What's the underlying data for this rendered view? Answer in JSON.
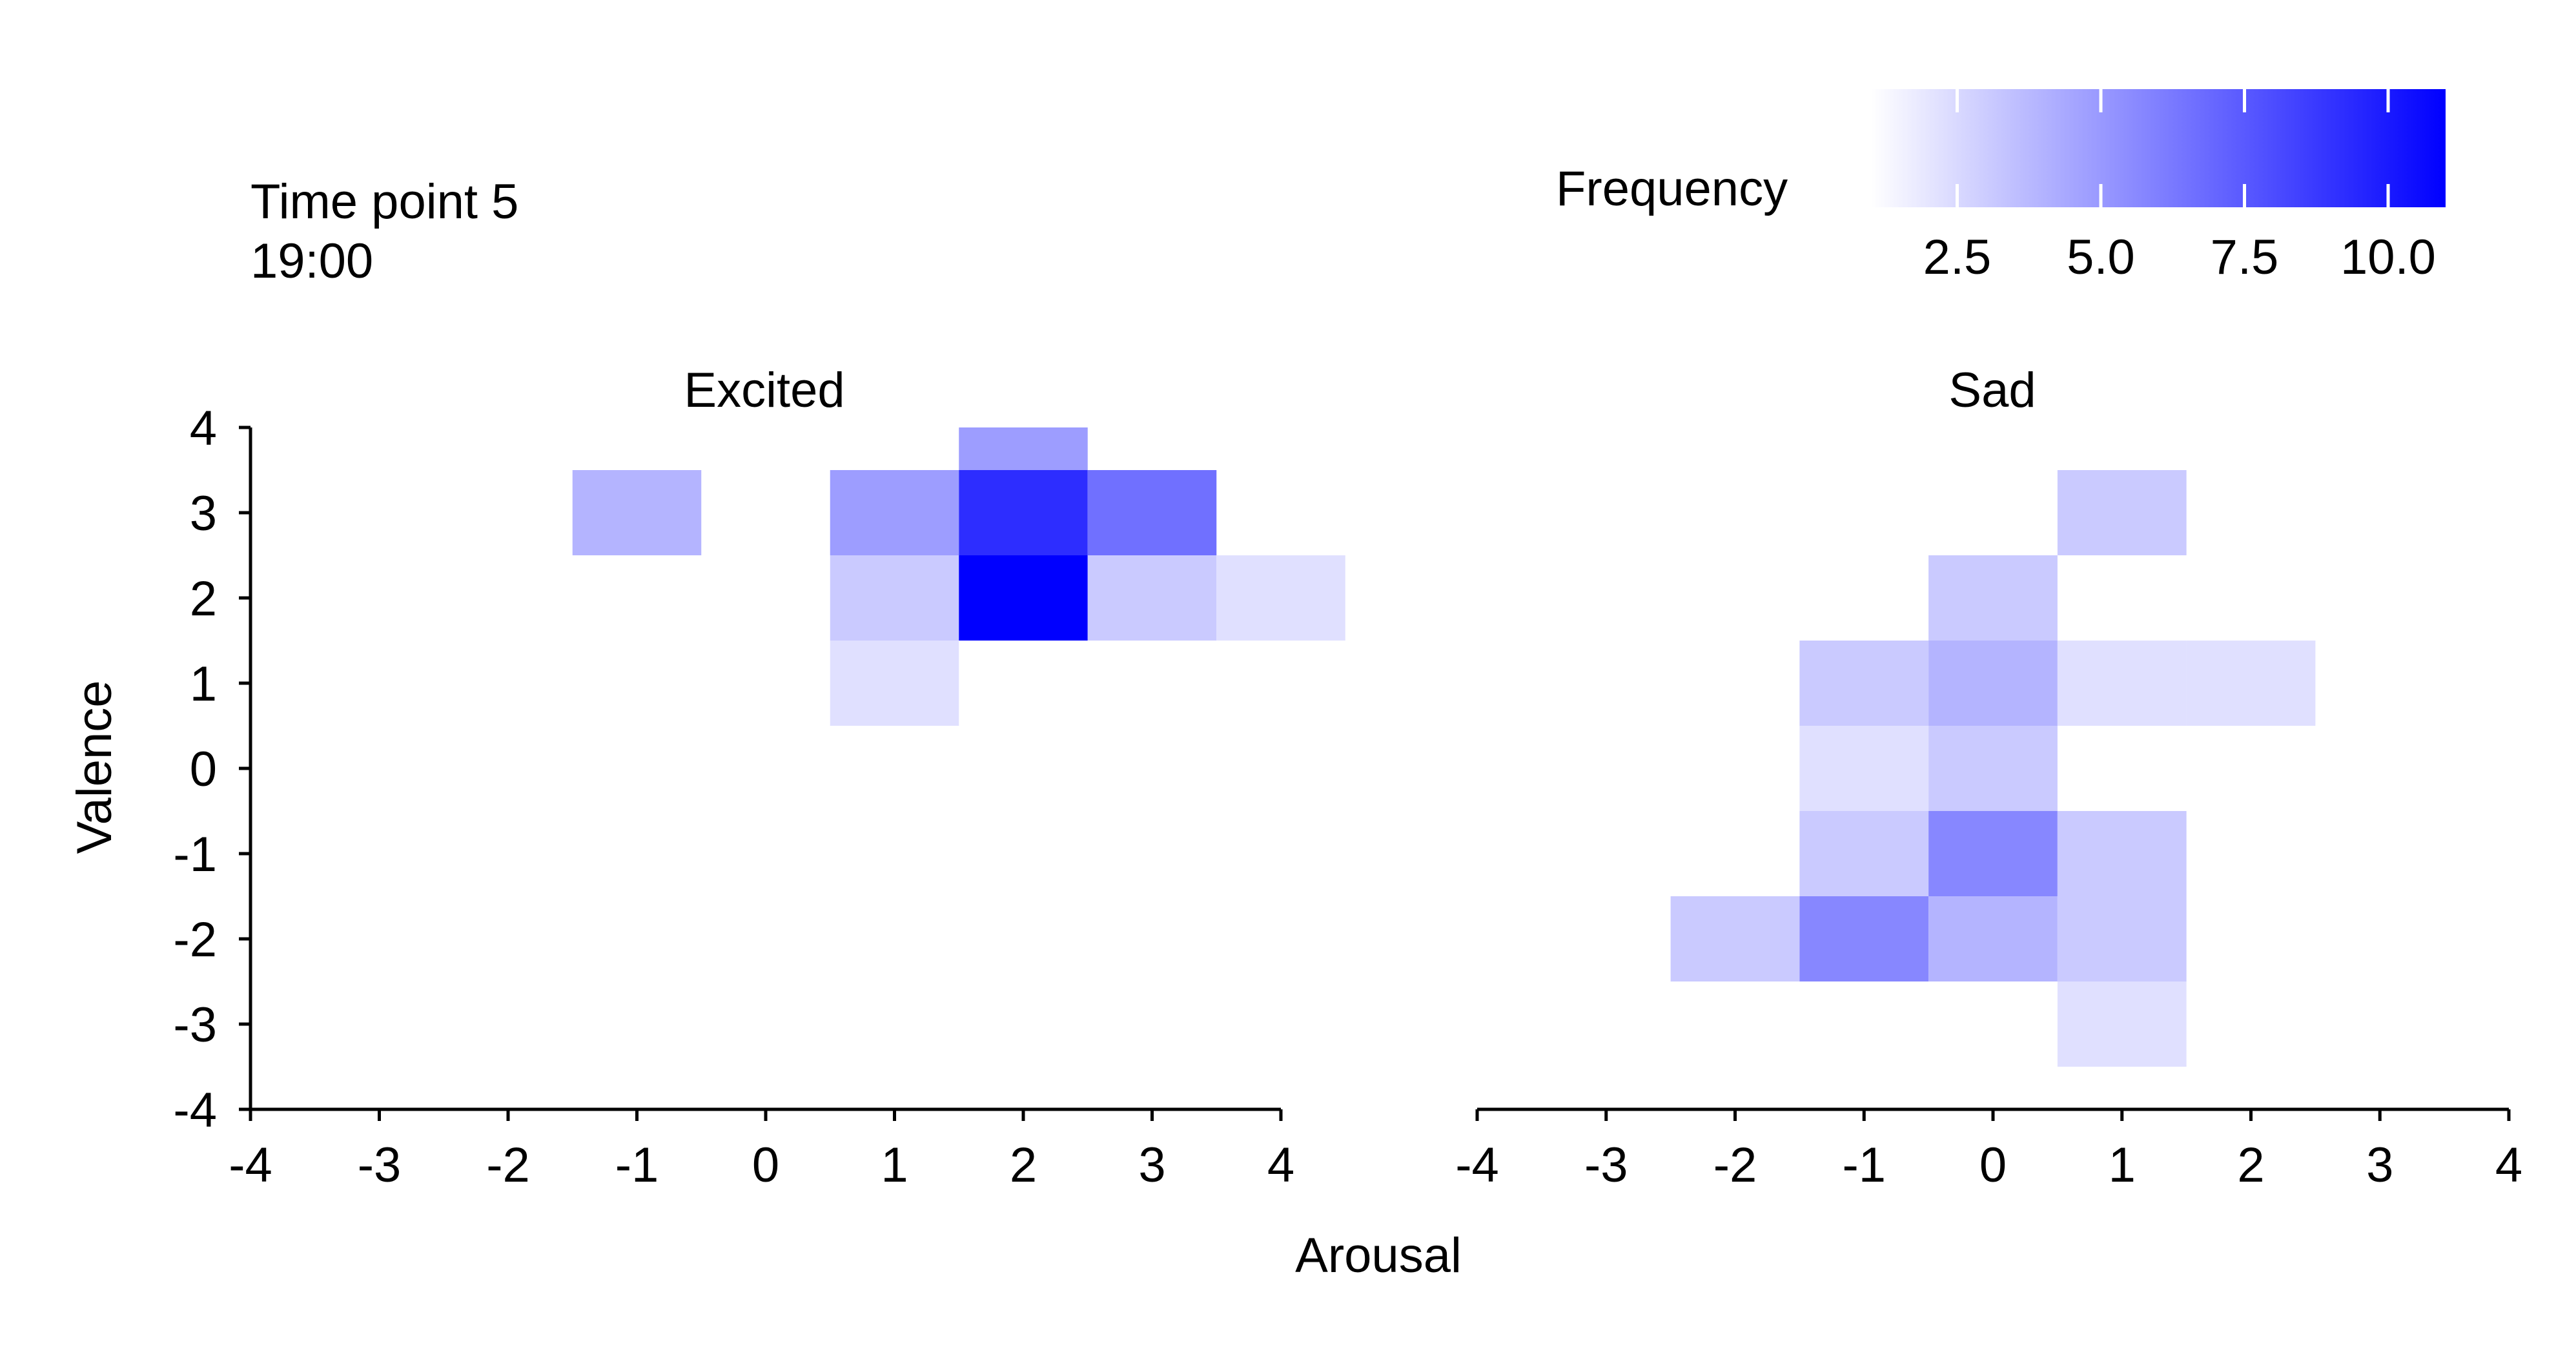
{
  "header": {
    "time_point": "Time point 5",
    "time": "19:00"
  },
  "legend": {
    "title": "Frequency",
    "ticks": [
      "2.5",
      "5.0",
      "7.5",
      "10.0"
    ],
    "tick_values": [
      2.5,
      5.0,
      7.5,
      10.0
    ],
    "range": [
      1,
      11
    ],
    "color_low": "#ffffff",
    "color_high": "#0000ff"
  },
  "axes": {
    "xlabel": "Arousal",
    "ylabel": "Valence",
    "x_ticks": [
      "-4",
      "-3",
      "-2",
      "-1",
      "0",
      "1",
      "2",
      "3",
      "4"
    ],
    "y_ticks": [
      "4",
      "3",
      "2",
      "1",
      "0",
      "-1",
      "-2",
      "-3",
      "-4"
    ]
  },
  "chart_data": {
    "type": "heatmap",
    "xlabel": "Arousal",
    "ylabel": "Valence",
    "xlim": [
      -4,
      4
    ],
    "ylim": [
      -4,
      4
    ],
    "color_scale": {
      "label": "Frequency",
      "min": 1,
      "max": 11,
      "low": "#ffffff",
      "high": "#0000ff"
    },
    "panels": [
      {
        "title": "Excited",
        "cells": [
          {
            "x": 2,
            "y": 4,
            "value": 4
          },
          {
            "x": -1,
            "y": 3,
            "value": 3
          },
          {
            "x": 1,
            "y": 3,
            "value": 4
          },
          {
            "x": 2,
            "y": 3,
            "value": 9
          },
          {
            "x": 3,
            "y": 3,
            "value": 6
          },
          {
            "x": 1,
            "y": 2,
            "value": 2
          },
          {
            "x": 2,
            "y": 2,
            "value": 11
          },
          {
            "x": 3,
            "y": 2,
            "value": 2
          },
          {
            "x": 4,
            "y": 2,
            "value": 1
          },
          {
            "x": 1,
            "y": 1,
            "value": 1
          }
        ]
      },
      {
        "title": "Sad",
        "cells": [
          {
            "x": 1,
            "y": 3,
            "value": 2
          },
          {
            "x": 0,
            "y": 2,
            "value": 2
          },
          {
            "x": -1,
            "y": 1,
            "value": 2
          },
          {
            "x": 0,
            "y": 1,
            "value": 3
          },
          {
            "x": 1,
            "y": 1,
            "value": 1
          },
          {
            "x": 2,
            "y": 1,
            "value": 1
          },
          {
            "x": -1,
            "y": 0,
            "value": 1
          },
          {
            "x": 0,
            "y": 0,
            "value": 2
          },
          {
            "x": -1,
            "y": -1,
            "value": 2
          },
          {
            "x": 0,
            "y": -1,
            "value": 5
          },
          {
            "x": 1,
            "y": -1,
            "value": 2
          },
          {
            "x": -2,
            "y": -2,
            "value": 2
          },
          {
            "x": -1,
            "y": -2,
            "value": 5
          },
          {
            "x": 0,
            "y": -2,
            "value": 3
          },
          {
            "x": 1,
            "y": -2,
            "value": 2
          },
          {
            "x": 1,
            "y": -3,
            "value": 1
          }
        ]
      }
    ]
  }
}
